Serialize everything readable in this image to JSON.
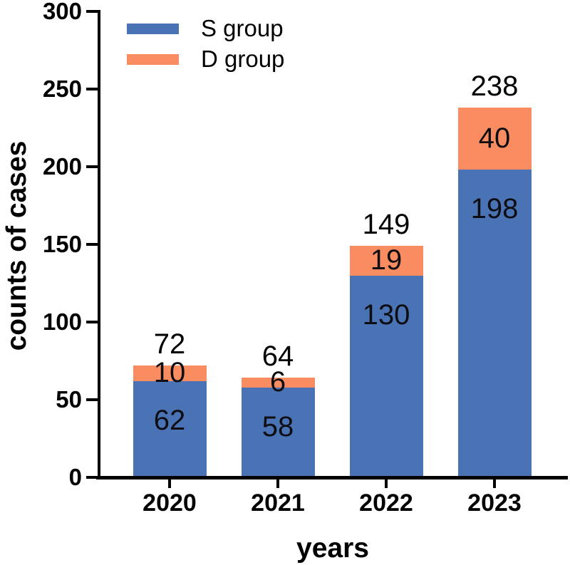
{
  "chart_data": {
    "type": "bar",
    "stacked": true,
    "title": "",
    "xlabel": "years",
    "ylabel": "counts of cases",
    "categories": [
      "2020",
      "2021",
      "2022",
      "2023"
    ],
    "series": [
      {
        "name": "S group",
        "color": "#4A73B5",
        "values": [
          62,
          58,
          130,
          198
        ]
      },
      {
        "name": "D group",
        "color": "#F98C61",
        "values": [
          10,
          6,
          19,
          40
        ]
      }
    ],
    "totals": [
      72,
      64,
      149,
      238
    ],
    "ylim": [
      0,
      300
    ],
    "yticks": [
      0,
      50,
      100,
      150,
      200,
      250,
      300
    ],
    "legend_position": "top-left",
    "grid": false,
    "axis_color": "#000000",
    "background": "#ffffff"
  }
}
